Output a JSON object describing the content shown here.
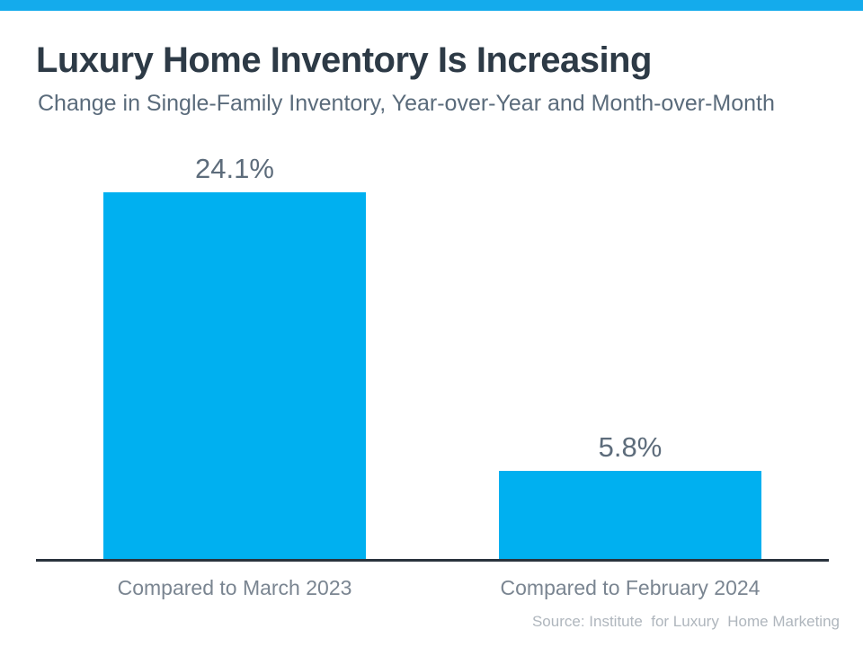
{
  "chart_data": {
    "type": "bar",
    "title": "Luxury Home Inventory Is Increasing",
    "subtitle": "Change in Single-Family Inventory, Year-over-Year and Month-over-Month",
    "categories": [
      "Compared to March 2023",
      "Compared to February 2024"
    ],
    "values": [
      24.1,
      5.8
    ],
    "value_labels": [
      "24.1%",
      "5.8%"
    ],
    "source": "Source: Institute  for Luxury  Home Marketing",
    "ylim": [
      0,
      24.1
    ],
    "grid": "off",
    "legend": "none",
    "bar_color": "#00B0F0",
    "accent_strip_color": "#14ABEC",
    "title_color": "#2D3A46",
    "subtitle_color": "#5A6B7B",
    "value_label_color": "#5D6C7B",
    "category_label_color": "#7A8591",
    "axis_line_color": "#2A333D",
    "source_color": "#AFB6BD"
  }
}
